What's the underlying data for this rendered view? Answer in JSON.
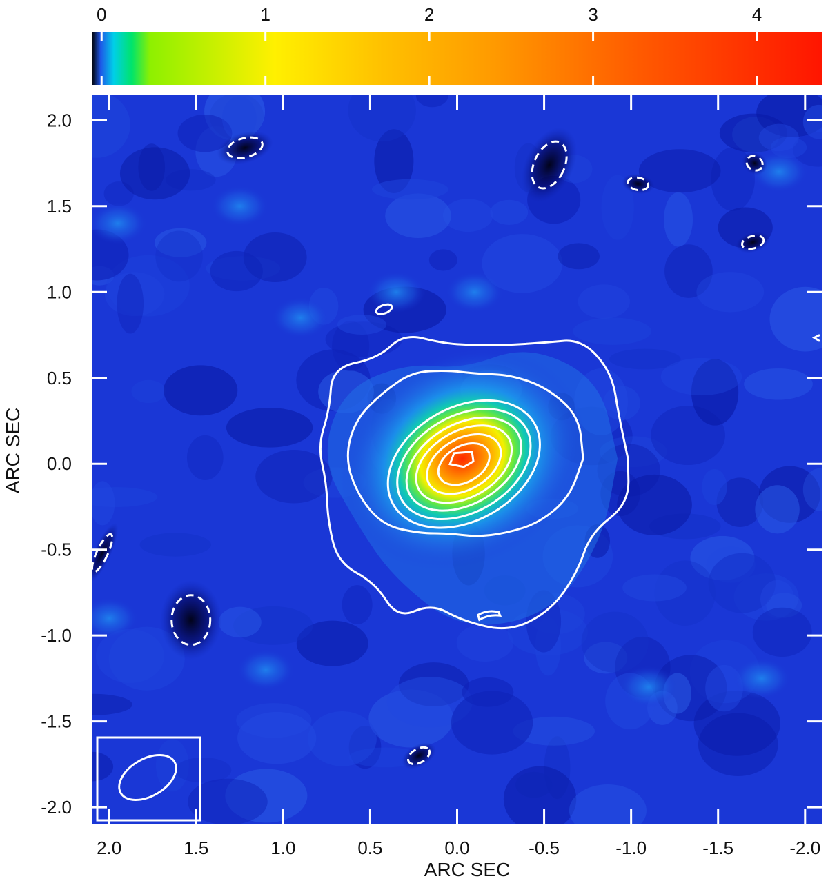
{
  "chart_data": {
    "type": "heatmap",
    "xlabel": "ARC SEC",
    "ylabel": "ARC SEC",
    "xlim": [
      2.1,
      -2.1
    ],
    "ylim": [
      -2.1,
      2.15
    ],
    "x_ticks": [
      2.0,
      1.5,
      1.0,
      0.5,
      0.0,
      -0.5,
      -1.0,
      -1.5,
      -2.0
    ],
    "x_tick_labels": [
      "2.0",
      "1.5",
      "1.0",
      "0.5",
      "0.0",
      "-0.5",
      "-1.0",
      "-1.5",
      "-2.0"
    ],
    "y_ticks": [
      2.0,
      1.5,
      1.0,
      0.5,
      0.0,
      -0.5,
      -1.0,
      -1.5,
      -2.0
    ],
    "y_tick_labels": [
      "2.0",
      "1.5",
      "1.0",
      "0.5",
      "0.0",
      "-0.5",
      "-1.0",
      "-1.5",
      "-2.0"
    ],
    "colorbar": {
      "position": "top",
      "range": [
        -0.06,
        4.4
      ],
      "ticks": [
        0,
        1,
        2,
        3,
        4
      ],
      "tick_labels": [
        "0",
        "1",
        "2",
        "3",
        "4"
      ],
      "colormap": [
        "#000000",
        "#1e56e8",
        "#00cfe8",
        "#00e46a",
        "#8ef000",
        "#fff000",
        "#ffc000",
        "#ff9a00",
        "#ff5a00",
        "#ff1500"
      ]
    },
    "source": {
      "peak": 4.1,
      "peak_position": [
        -0.03,
        0.03
      ],
      "sigma_x": 0.23,
      "sigma_y": 0.19,
      "orientation_deg": 30
    },
    "background_level": 0.12,
    "positive_contours_count": 8,
    "negative_contours_style": "dashed",
    "negative_features": [
      [
        1.22,
        1.84
      ],
      [
        -0.53,
        1.74
      ],
      [
        -1.04,
        1.63
      ],
      [
        -1.71,
        1.75
      ],
      [
        -1.7,
        1.29
      ],
      [
        1.53,
        -0.91
      ],
      [
        0.22,
        -1.7
      ],
      [
        2.04,
        -0.52
      ]
    ],
    "beam": {
      "position": "bottom-left",
      "major": 0.36,
      "minor": 0.22,
      "pa_deg": 60
    },
    "grid": false,
    "colors": {
      "contour": "#ffffff",
      "frame": "#ffffff",
      "background": "#1a37d6"
    }
  }
}
